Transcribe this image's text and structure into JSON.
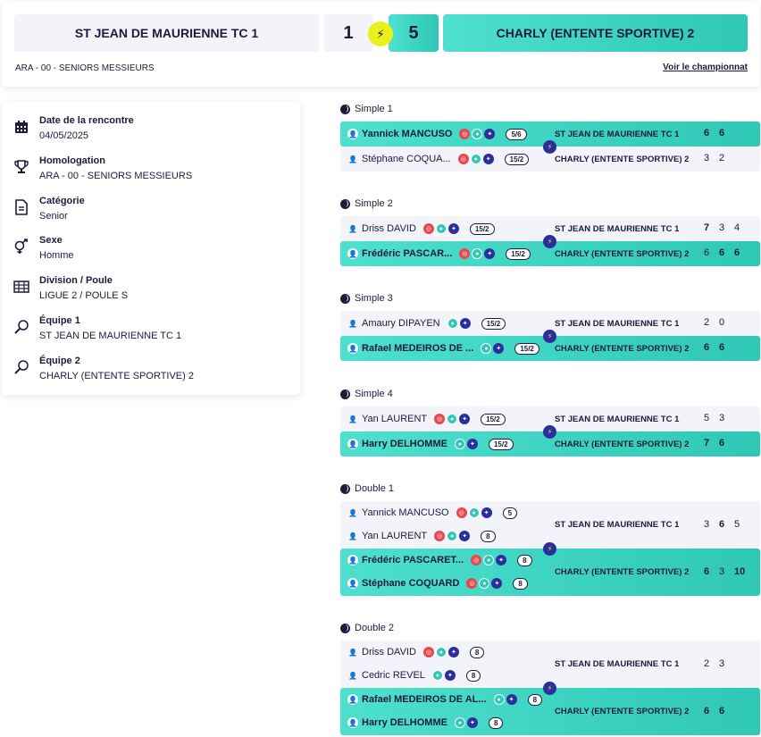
{
  "header": {
    "home_team": "ST JEAN DE MAURIENNE TC 1",
    "away_team": "CHARLY (ENTENTE SPORTIVE) 2",
    "home_score": "1",
    "away_score": "5",
    "subtitle": "ARA - 00 - SENIORS MESSIEURS",
    "link": "Voir le championnat"
  },
  "info": [
    {
      "icon": "calendar-icon",
      "label": "Date de la rencontre",
      "value": "04/05/2025"
    },
    {
      "icon": "trophy-icon",
      "label": "Homologation",
      "value": "ARA - 00 - SENIORS MESSIEURS"
    },
    {
      "icon": "document-icon",
      "label": "Catégorie",
      "value": "Senior"
    },
    {
      "icon": "gender-icon",
      "label": "Sexe",
      "value": "Homme"
    },
    {
      "icon": "grid-icon",
      "label": "Division / Poule",
      "value": "LIGUE 2 / POULE S"
    },
    {
      "icon": "racket-1-icon",
      "label": "Équipe 1",
      "value": "ST JEAN DE MAURIENNE TC 1"
    },
    {
      "icon": "racket-2-icon",
      "label": "Équipe 2",
      "value": "CHARLY (ENTENTE SPORTIVE) 2"
    }
  ],
  "matches": [
    {
      "title": "Simple 1",
      "type": "single",
      "home": {
        "players": [
          {
            "name": "Yannick MANCUSO",
            "dots": [
              "red",
              "teal",
              "blue"
            ],
            "rank": "5/6"
          }
        ],
        "team": "ST JEAN DE MAURIENNE TC 1",
        "sets": [
          "6",
          "6"
        ],
        "won": true
      },
      "away": {
        "players": [
          {
            "name": "Stéphane COQUA...",
            "dots": [
              "red",
              "teal",
              "blue"
            ],
            "rank": "15/2"
          }
        ],
        "team": "CHARLY (ENTENTE SPORTIVE) 2",
        "sets": [
          "3",
          "2"
        ],
        "won": false
      }
    },
    {
      "title": "Simple 2",
      "type": "single",
      "home": {
        "players": [
          {
            "name": "Driss DAVID",
            "dots": [
              "red",
              "teal",
              "blue"
            ],
            "rank": "15/2"
          }
        ],
        "team": "ST JEAN DE MAURIENNE TC 1",
        "sets": [
          "7",
          "3",
          "4"
        ],
        "won": false
      },
      "away": {
        "players": [
          {
            "name": "Frédéric PASCAR...",
            "dots": [
              "red",
              "teal",
              "blue"
            ],
            "rank": "15/2"
          }
        ],
        "team": "CHARLY (ENTENTE SPORTIVE) 2",
        "sets": [
          "6",
          "6",
          "6"
        ],
        "won": true
      }
    },
    {
      "title": "Simple 3",
      "type": "single",
      "home": {
        "players": [
          {
            "name": "Amaury DIPAYEN",
            "dots": [
              "teal",
              "blue"
            ],
            "rank": "15/2"
          }
        ],
        "team": "ST JEAN DE MAURIENNE TC 1",
        "sets": [
          "2",
          "0"
        ],
        "won": false
      },
      "away": {
        "players": [
          {
            "name": "Rafael MEDEIROS DE ...",
            "dots": [
              "teal",
              "blue"
            ],
            "rank": "15/2"
          }
        ],
        "team": "CHARLY (ENTENTE SPORTIVE) 2",
        "sets": [
          "6",
          "6"
        ],
        "won": true
      }
    },
    {
      "title": "Simple 4",
      "type": "single",
      "home": {
        "players": [
          {
            "name": "Yan LAURENT",
            "dots": [
              "red",
              "teal",
              "blue"
            ],
            "rank": "15/2"
          }
        ],
        "team": "ST JEAN DE MAURIENNE TC 1",
        "sets": [
          "5",
          "3"
        ],
        "won": false
      },
      "away": {
        "players": [
          {
            "name": "Harry DELHOMME",
            "dots": [
              "teal",
              "blue"
            ],
            "rank": "15/2"
          }
        ],
        "team": "CHARLY (ENTENTE SPORTIVE) 2",
        "sets": [
          "7",
          "6"
        ],
        "won": true
      }
    },
    {
      "title": "Double 1",
      "type": "double",
      "home": {
        "players": [
          {
            "name": "Yannick MANCUSO",
            "dots": [
              "red",
              "teal",
              "blue"
            ],
            "rank": "5"
          },
          {
            "name": "Yan LAURENT",
            "dots": [
              "red",
              "teal",
              "blue"
            ],
            "rank": "8"
          }
        ],
        "team": "ST JEAN DE MAURIENNE TC 1",
        "sets": [
          "3",
          "6",
          "5"
        ],
        "won": false
      },
      "away": {
        "players": [
          {
            "name": "Frédéric PASCARET...",
            "dots": [
              "red",
              "teal",
              "blue"
            ],
            "rank": "8"
          },
          {
            "name": "Stéphane COQUARD",
            "dots": [
              "red",
              "teal",
              "blue"
            ],
            "rank": "8"
          }
        ],
        "team": "CHARLY (ENTENTE SPORTIVE) 2",
        "sets": [
          "6",
          "3",
          "10"
        ],
        "won": true
      }
    },
    {
      "title": "Double 2",
      "type": "double",
      "home": {
        "players": [
          {
            "name": "Driss DAVID",
            "dots": [
              "red",
              "teal",
              "blue"
            ],
            "rank": "8"
          },
          {
            "name": "Cedric REVEL",
            "dots": [
              "teal",
              "blue"
            ],
            "rank": "8"
          }
        ],
        "team": "ST JEAN DE MAURIENNE TC 1",
        "sets": [
          "2",
          "3"
        ],
        "won": false
      },
      "away": {
        "players": [
          {
            "name": "Rafael MEDEIROS DE AL...",
            "dots": [
              "teal",
              "blue"
            ],
            "rank": "8"
          },
          {
            "name": "Harry DELHOMME",
            "dots": [
              "teal",
              "blue"
            ],
            "rank": "8"
          }
        ],
        "team": "CHARLY (ENTENTE SPORTIVE) 2",
        "sets": [
          "6",
          "6"
        ],
        "won": true
      }
    }
  ],
  "colors": {
    "accent": "#2fc7b5",
    "light": "#f3f3fa",
    "yellow": "#e8f21a",
    "navy": "#2b2f9c",
    "red": "#e8474f"
  }
}
